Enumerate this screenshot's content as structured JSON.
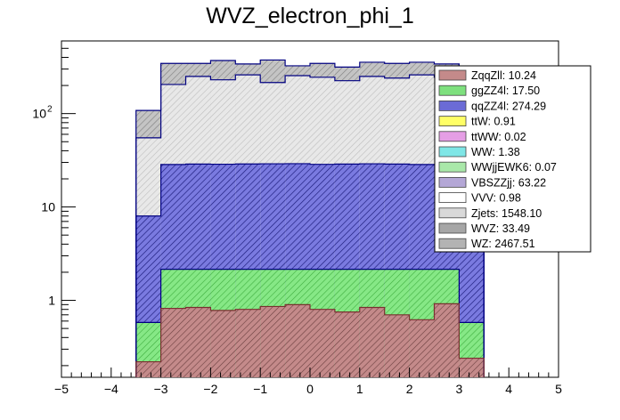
{
  "chart_data": {
    "type": "bar",
    "stacked": true,
    "title": "WVZ_electron_phi_1",
    "xlabel": "",
    "ylabel": "",
    "xlim": [
      -5,
      5
    ],
    "ylim": [
      0.15,
      600
    ],
    "yscale": "log",
    "grid": false,
    "legend_position": "top-right",
    "bin_edges": [
      -3.5,
      -3.0,
      -2.5,
      -2.0,
      -1.5,
      -1.0,
      -0.5,
      0.0,
      0.5,
      1.0,
      1.5,
      2.0,
      2.5,
      3.0,
      3.5
    ],
    "x_ticks": [
      "−5",
      "−4",
      "−3",
      "−2",
      "−1",
      "0",
      "1",
      "2",
      "3",
      "4",
      "5"
    ],
    "y_ticks": [
      {
        "value": 1,
        "label": "1"
      },
      {
        "value": 10,
        "label": "10"
      },
      {
        "value": 100,
        "label": "10",
        "exponent": "2"
      }
    ],
    "stack_totals": {
      "ZqqZll": [
        0.22,
        0.82,
        0.84,
        0.78,
        0.8,
        0.86,
        0.9,
        0.8,
        0.75,
        0.84,
        0.7,
        0.62,
        0.92,
        0.24
      ],
      "ggZZ4l": [
        0.58,
        2.15,
        2.15,
        2.15,
        2.15,
        2.15,
        2.15,
        2.15,
        2.15,
        2.15,
        2.15,
        2.15,
        2.15,
        0.58
      ],
      "qqZZ4l": [
        8.0,
        28.5,
        28.8,
        28.7,
        28.9,
        29.0,
        29.1,
        28.6,
        28.8,
        29.0,
        28.8,
        28.5,
        28.4,
        8.0
      ],
      "Zjets": [
        55,
        205,
        250,
        230,
        260,
        215,
        255,
        245,
        225,
        250,
        240,
        260,
        245,
        58
      ],
      "WZ": [
        108,
        345,
        345,
        370,
        340,
        375,
        325,
        345,
        315,
        355,
        345,
        355,
        340,
        112
      ]
    },
    "legend": [
      {
        "label": "ZqqZll: 10.24",
        "color": "#c48a8a"
      },
      {
        "label": "ggZZ4l: 17.50",
        "color": "#7ee07e"
      },
      {
        "label": "qqZZ4l: 274.29",
        "color": "#6b6bd6"
      },
      {
        "label": "ttW: 0.91",
        "color": "#ffff66"
      },
      {
        "label": "ttWW: 0.02",
        "color": "#e59ee5"
      },
      {
        "label": "WW: 1.38",
        "color": "#7fe6e6"
      },
      {
        "label": "WWjjEWK6: 0.07",
        "color": "#a9e8a9"
      },
      {
        "label": "VBSZZjj: 63.22",
        "color": "#b4a7d6"
      },
      {
        "label": "VVV: 0.98",
        "color": "#ffffff"
      },
      {
        "label": "Zjets: 1548.10",
        "color": "#d9d9d9"
      },
      {
        "label": "WVZ: 33.49",
        "color": "#a6a6a6"
      },
      {
        "label": "WZ: 2467.51",
        "color": "#b3b3b3"
      }
    ]
  }
}
